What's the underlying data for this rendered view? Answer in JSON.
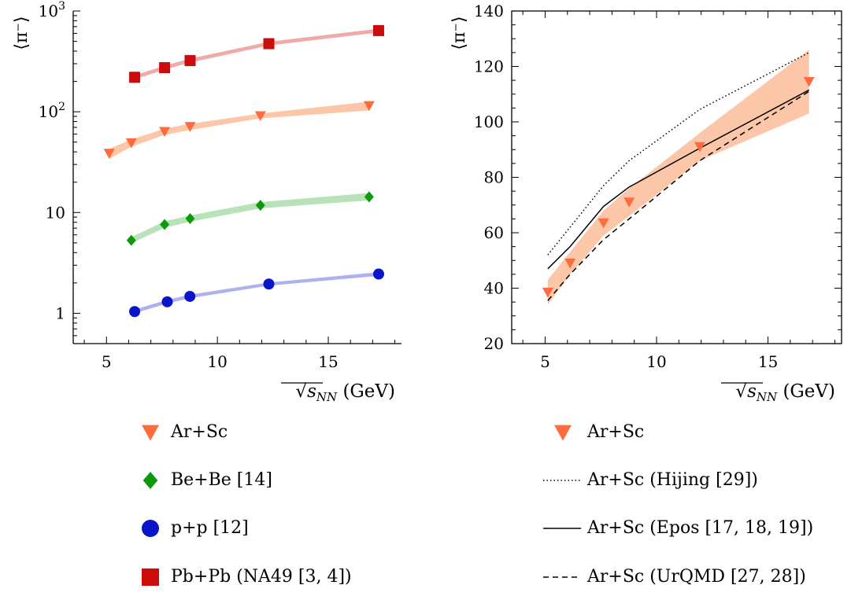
{
  "chart_data": [
    {
      "type": "scatter",
      "xlabel_base": "√s",
      "xlabel_sub": "NN",
      "xlabel_unit": "(GeV)",
      "ylabel": "⟨π⁻⟩",
      "yscale": "log",
      "xlim": [
        3.5,
        18.3
      ],
      "ylim": [
        0.5,
        1000
      ],
      "xticks": [
        5,
        10,
        15
      ],
      "ytick_labels": [
        {
          "value": 1,
          "label": "1"
        },
        {
          "value": 10,
          "label": "10"
        },
        {
          "value": 100,
          "label": "10",
          "sup": "2"
        },
        {
          "value": 1000,
          "label": "10",
          "sup": "3"
        }
      ],
      "series": [
        {
          "name": "Ar+Sc",
          "marker": "triangle-down",
          "color": "#ff6b3d",
          "band_color": "#fcc6a8",
          "x": [
            5.12,
            6.12,
            7.62,
            8.77,
            11.94,
            16.84
          ],
          "y": [
            38.5,
            49,
            63.5,
            71,
            91,
            114.5
          ],
          "band_lo": [
            34,
            45,
            59,
            66,
            86,
            103
          ],
          "band_hi": [
            43,
            53,
            68,
            76,
            96,
            126
          ]
        },
        {
          "name": "Be+Be [14]",
          "marker": "diamond",
          "color": "#0a9a0a",
          "band_color": "#b8e2b8",
          "x": [
            6.12,
            7.62,
            8.77,
            11.94,
            16.84
          ],
          "y": [
            5.3,
            7.6,
            8.7,
            11.8,
            14.3
          ],
          "band_lo": [
            4.95,
            7.05,
            8.1,
            11.0,
            13.2
          ],
          "band_hi": [
            5.7,
            8.2,
            9.35,
            12.7,
            15.6
          ]
        },
        {
          "name": "p+p [12]",
          "marker": "circle",
          "color": "#0a14c8",
          "band_color": "#aeb1ee",
          "x": [
            6.27,
            7.74,
            8.76,
            12.32,
            17.27
          ],
          "y": [
            1.04,
            1.3,
            1.47,
            1.95,
            2.45
          ],
          "band_lo": [
            1.0,
            1.25,
            1.41,
            1.88,
            2.35
          ],
          "band_hi": [
            1.09,
            1.36,
            1.53,
            2.02,
            2.56
          ]
        },
        {
          "name": "Pb+Pb (NA49 [3, 4])",
          "marker": "square",
          "color": "#cc0c0c",
          "band_color": "#f0aaaa",
          "x": [
            6.27,
            7.62,
            8.77,
            12.32,
            17.27
          ],
          "y": [
            220,
            274,
            322,
            474,
            639
          ],
          "band_lo": [
            210,
            262,
            308,
            455,
            612
          ],
          "band_hi": [
            230,
            287,
            337,
            495,
            668
          ]
        }
      ]
    },
    {
      "type": "line",
      "xlabel_base": "√s",
      "xlabel_sub": "NN",
      "xlabel_unit": "(GeV)",
      "ylabel": "⟨π⁻⟩",
      "yscale": "linear",
      "xlim": [
        3.5,
        18.3
      ],
      "ylim": [
        20,
        140
      ],
      "xticks": [
        5,
        10,
        15
      ],
      "yticks": [
        20,
        40,
        60,
        80,
        100,
        120,
        140
      ],
      "band": {
        "color": "#fcc6a8",
        "x": [
          5.12,
          6.12,
          7.62,
          8.77,
          11.94,
          16.84
        ],
        "lo": [
          34,
          45,
          59,
          66,
          86,
          103
        ],
        "hi": [
          43,
          53,
          68,
          76,
          96,
          126
        ]
      },
      "points": {
        "name": "Ar+Sc",
        "marker": "triangle-down",
        "color": "#ff6b3d",
        "x": [
          5.12,
          6.12,
          7.62,
          8.77,
          11.94,
          16.84
        ],
        "y": [
          38.5,
          49,
          63.5,
          71,
          91,
          114.5
        ]
      },
      "models": [
        {
          "name": "Ar+Sc (Hijing [29])",
          "style": "dotted",
          "x": [
            5.12,
            6.12,
            7.62,
            8.77,
            11.94,
            16.84
          ],
          "y": [
            52,
            62,
            77,
            86,
            104.5,
            125
          ]
        },
        {
          "name": "Ar+Sc (Epos [17, 18, 19])",
          "style": "solid",
          "x": [
            5.12,
            6.12,
            7.62,
            8.77,
            11.94,
            16.84
          ],
          "y": [
            47,
            55,
            69.5,
            76.5,
            90.5,
            111.5
          ]
        },
        {
          "name": "Ar+Sc (UrQMD [27, 28])",
          "style": "dashed",
          "x": [
            5.12,
            6.12,
            7.62,
            8.77,
            11.94,
            16.84
          ],
          "y": [
            35.5,
            45,
            57.5,
            65,
            86,
            111
          ]
        }
      ]
    }
  ],
  "legend_left": [
    {
      "marker": "triangle-down",
      "color": "#ff6b3d",
      "label": "Ar+Sc"
    },
    {
      "marker": "diamond",
      "color": "#0a9a0a",
      "label": "Be+Be [14]"
    },
    {
      "marker": "circle",
      "color": "#0a14c8",
      "label": "p+p [12]"
    },
    {
      "marker": "square",
      "color": "#cc0c0c",
      "label": "Pb+Pb (NA49 [3, 4])"
    }
  ],
  "legend_right": [
    {
      "marker": "triangle-down",
      "color": "#ff6b3d",
      "label": "Ar+Sc"
    },
    {
      "marker": "dotted",
      "label": "Ar+Sc (Hijing [29])"
    },
    {
      "marker": "solid",
      "label": "Ar+Sc (Epos [17, 18, 19])"
    },
    {
      "marker": "dashed",
      "label": "Ar+Sc (UrQMD [27, 28])"
    }
  ]
}
